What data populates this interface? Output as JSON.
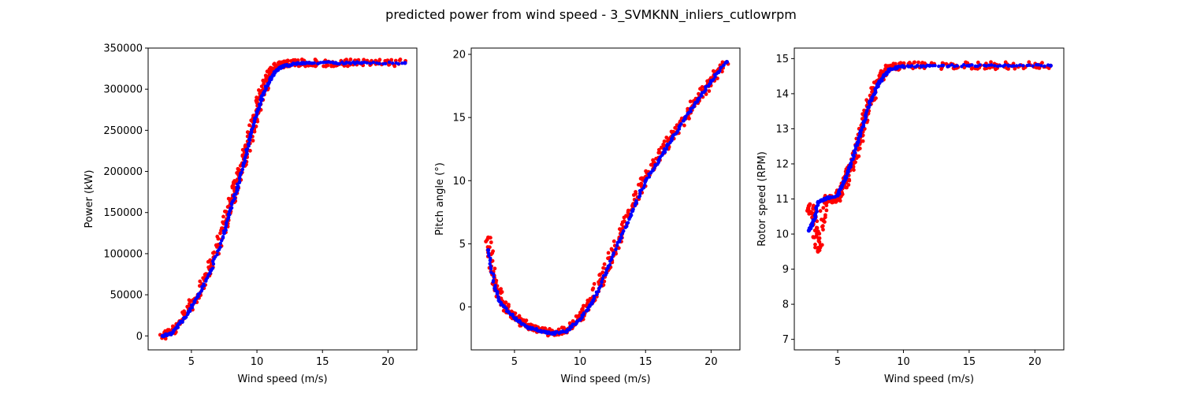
{
  "chart_data": {
    "title": "predicted power from wind speed - 3_SVMKNN_inliers_cutlowrpm",
    "colors": {
      "measured": "#ff0000",
      "predicted": "#0000ff"
    },
    "panels": [
      {
        "type": "scatter",
        "xlabel": "Wind speed (m/s)",
        "ylabel": "Power (kW)",
        "xlim": [
          1.7,
          22.2
        ],
        "ylim": [
          -17000,
          350000
        ],
        "xticks": [
          "5",
          "10",
          "15",
          "20"
        ],
        "yticks": [
          "0",
          "50000",
          "100000",
          "150000",
          "200000",
          "250000",
          "300000",
          "350000"
        ],
        "series": [
          {
            "color": "red",
            "x": [
              2.8,
              3.5,
              4.5,
              5.5,
              6.5,
              7.5,
              8.0,
              8.5,
              9.0,
              9.5,
              10.0,
              10.5,
              11.0,
              11.5,
              12.0,
              13.0,
              14.0,
              16.0,
              18.0,
              21.3
            ],
            "y": [
              0,
              5000,
              25000,
              50000,
              85000,
              130000,
              160000,
              185000,
              215000,
              245000,
              275000,
              300000,
              318000,
              328000,
              331000,
              332000,
              332000,
              332000,
              332000,
              332000
            ]
          },
          {
            "color": "blue",
            "x": [
              2.8,
              3.5,
              4.5,
              5.5,
              6.5,
              7.5,
              8.0,
              8.5,
              9.0,
              9.5,
              10.0,
              10.5,
              11.0,
              11.5,
              12.0,
              13.0,
              14.0,
              16.0,
              18.0,
              21.3
            ],
            "y": [
              0,
              3000,
              22000,
              48000,
              80000,
              125000,
              155000,
              180000,
              210000,
              242000,
              272000,
              295000,
              312000,
              323000,
              328000,
              331000,
              332000,
              332000,
              332000,
              332000
            ]
          }
        ]
      },
      {
        "type": "scatter",
        "xlabel": "Wind speed (m/s)",
        "ylabel": "Pitch angle (°)",
        "xlim": [
          1.7,
          22.2
        ],
        "ylim": [
          -3.4,
          20.5
        ],
        "xticks": [
          "5",
          "10",
          "15",
          "20"
        ],
        "yticks": [
          "0",
          "5",
          "10",
          "15",
          "20"
        ],
        "series": [
          {
            "color": "red",
            "x": [
              3.0,
              3.5,
              4.0,
              5.0,
              6.0,
              7.0,
              8.0,
              9.0,
              10.0,
              11.0,
              12.0,
              13.0,
              14.0,
              15.0,
              16.0,
              17.0,
              18.0,
              19.0,
              20.0,
              21.2
            ],
            "y": [
              5.5,
              2.0,
              0.5,
              -0.8,
              -1.5,
              -1.9,
              -2.1,
              -1.8,
              -0.8,
              0.8,
              3.0,
              5.5,
              8.0,
              10.3,
              11.8,
              13.5,
              15.0,
              16.5,
              18.0,
              19.4
            ]
          },
          {
            "color": "blue",
            "x": [
              3.0,
              3.5,
              4.0,
              5.0,
              6.0,
              7.0,
              8.0,
              9.0,
              10.0,
              11.0,
              12.0,
              13.0,
              14.0,
              15.0,
              16.0,
              17.0,
              18.0,
              19.0,
              20.0,
              21.2
            ],
            "y": [
              4.5,
              1.5,
              0.2,
              -0.9,
              -1.6,
              -1.9,
              -2.1,
              -1.9,
              -1.0,
              0.5,
              2.7,
              5.2,
              7.6,
              10.0,
              11.6,
              13.3,
              14.9,
              16.4,
              17.9,
              19.4
            ]
          }
        ]
      },
      {
        "type": "scatter",
        "xlabel": "Wind speed (m/s)",
        "ylabel": "Rotor speed (RPM)",
        "xlim": [
          1.7,
          22.2
        ],
        "ylim": [
          6.7,
          15.3
        ],
        "xticks": [
          "5",
          "10",
          "15",
          "20"
        ],
        "yticks": [
          "7",
          "8",
          "9",
          "10",
          "11",
          "12",
          "13",
          "14",
          "15"
        ],
        "series": [
          {
            "color": "red",
            "x": [
              2.8,
              3.2,
              3.5,
              4.0,
              5.0,
              5.5,
              6.0,
              6.5,
              7.0,
              7.5,
              8.0,
              8.5,
              9.0,
              10.0,
              12.0,
              15.0,
              18.0,
              21.2
            ],
            "y": [
              10.8,
              10.5,
              9.5,
              11.0,
              11.0,
              11.4,
              11.9,
              12.5,
              13.2,
              13.8,
              14.3,
              14.6,
              14.75,
              14.8,
              14.8,
              14.8,
              14.8,
              14.8
            ]
          },
          {
            "color": "blue",
            "x": [
              2.8,
              3.2,
              3.5,
              4.0,
              5.0,
              5.5,
              6.0,
              6.5,
              7.0,
              7.5,
              8.0,
              8.5,
              9.0,
              10.0,
              12.0,
              15.0,
              18.0,
              21.2
            ],
            "y": [
              10.1,
              10.4,
              10.9,
              11.0,
              11.1,
              11.5,
              12.0,
              12.6,
              13.2,
              13.8,
              14.2,
              14.5,
              14.7,
              14.78,
              14.8,
              14.8,
              14.8,
              14.8
            ]
          }
        ]
      }
    ]
  }
}
